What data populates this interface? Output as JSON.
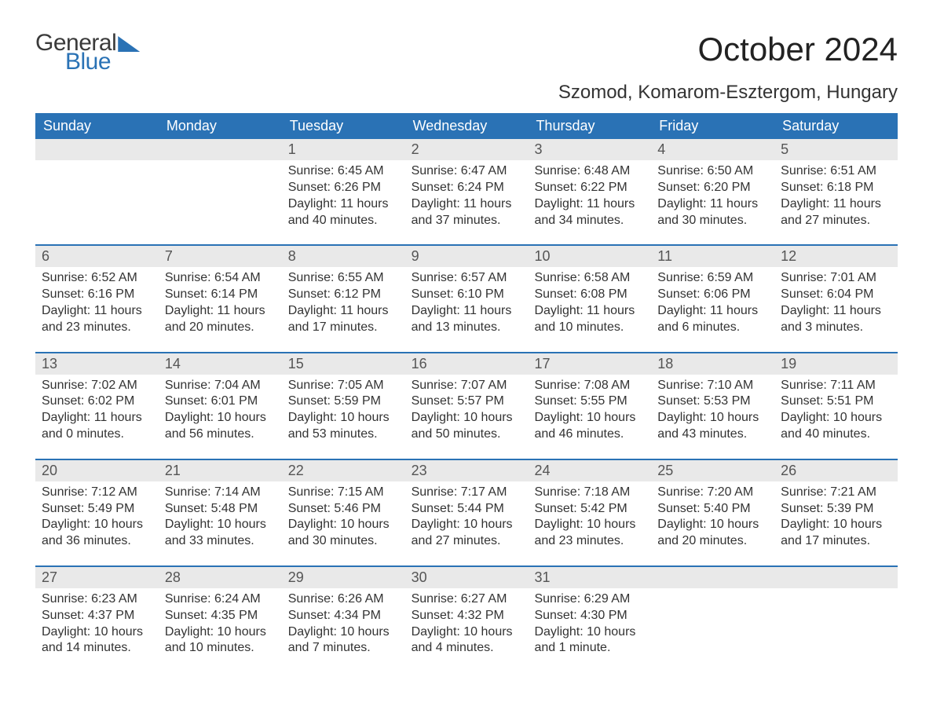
{
  "logo": {
    "general": "General",
    "blue": "Blue"
  },
  "title": "October 2024",
  "location": "Szomod, Komarom-Esztergom, Hungary",
  "colors": {
    "header_bg": "#2a72b5",
    "header_text": "#ffffff",
    "daynum_bg": "#e9e9e9",
    "week_border": "#2a72b5",
    "body_text": "#333333",
    "page_bg": "#ffffff"
  },
  "typography": {
    "title_fontsize": 42,
    "location_fontsize": 24,
    "dayhead_fontsize": 18,
    "daynum_fontsize": 18,
    "body_fontsize": 16,
    "logo_fontsize": 30
  },
  "day_headers": [
    "Sunday",
    "Monday",
    "Tuesday",
    "Wednesday",
    "Thursday",
    "Friday",
    "Saturday"
  ],
  "weeks": [
    [
      {
        "num": "",
        "sunrise": "",
        "sunset": "",
        "daylight": ""
      },
      {
        "num": "",
        "sunrise": "",
        "sunset": "",
        "daylight": ""
      },
      {
        "num": "1",
        "sunrise": "Sunrise: 6:45 AM",
        "sunset": "Sunset: 6:26 PM",
        "daylight": "Daylight: 11 hours and 40 minutes."
      },
      {
        "num": "2",
        "sunrise": "Sunrise: 6:47 AM",
        "sunset": "Sunset: 6:24 PM",
        "daylight": "Daylight: 11 hours and 37 minutes."
      },
      {
        "num": "3",
        "sunrise": "Sunrise: 6:48 AM",
        "sunset": "Sunset: 6:22 PM",
        "daylight": "Daylight: 11 hours and 34 minutes."
      },
      {
        "num": "4",
        "sunrise": "Sunrise: 6:50 AM",
        "sunset": "Sunset: 6:20 PM",
        "daylight": "Daylight: 11 hours and 30 minutes."
      },
      {
        "num": "5",
        "sunrise": "Sunrise: 6:51 AM",
        "sunset": "Sunset: 6:18 PM",
        "daylight": "Daylight: 11 hours and 27 minutes."
      }
    ],
    [
      {
        "num": "6",
        "sunrise": "Sunrise: 6:52 AM",
        "sunset": "Sunset: 6:16 PM",
        "daylight": "Daylight: 11 hours and 23 minutes."
      },
      {
        "num": "7",
        "sunrise": "Sunrise: 6:54 AM",
        "sunset": "Sunset: 6:14 PM",
        "daylight": "Daylight: 11 hours and 20 minutes."
      },
      {
        "num": "8",
        "sunrise": "Sunrise: 6:55 AM",
        "sunset": "Sunset: 6:12 PM",
        "daylight": "Daylight: 11 hours and 17 minutes."
      },
      {
        "num": "9",
        "sunrise": "Sunrise: 6:57 AM",
        "sunset": "Sunset: 6:10 PM",
        "daylight": "Daylight: 11 hours and 13 minutes."
      },
      {
        "num": "10",
        "sunrise": "Sunrise: 6:58 AM",
        "sunset": "Sunset: 6:08 PM",
        "daylight": "Daylight: 11 hours and 10 minutes."
      },
      {
        "num": "11",
        "sunrise": "Sunrise: 6:59 AM",
        "sunset": "Sunset: 6:06 PM",
        "daylight": "Daylight: 11 hours and 6 minutes."
      },
      {
        "num": "12",
        "sunrise": "Sunrise: 7:01 AM",
        "sunset": "Sunset: 6:04 PM",
        "daylight": "Daylight: 11 hours and 3 minutes."
      }
    ],
    [
      {
        "num": "13",
        "sunrise": "Sunrise: 7:02 AM",
        "sunset": "Sunset: 6:02 PM",
        "daylight": "Daylight: 11 hours and 0 minutes."
      },
      {
        "num": "14",
        "sunrise": "Sunrise: 7:04 AM",
        "sunset": "Sunset: 6:01 PM",
        "daylight": "Daylight: 10 hours and 56 minutes."
      },
      {
        "num": "15",
        "sunrise": "Sunrise: 7:05 AM",
        "sunset": "Sunset: 5:59 PM",
        "daylight": "Daylight: 10 hours and 53 minutes."
      },
      {
        "num": "16",
        "sunrise": "Sunrise: 7:07 AM",
        "sunset": "Sunset: 5:57 PM",
        "daylight": "Daylight: 10 hours and 50 minutes."
      },
      {
        "num": "17",
        "sunrise": "Sunrise: 7:08 AM",
        "sunset": "Sunset: 5:55 PM",
        "daylight": "Daylight: 10 hours and 46 minutes."
      },
      {
        "num": "18",
        "sunrise": "Sunrise: 7:10 AM",
        "sunset": "Sunset: 5:53 PM",
        "daylight": "Daylight: 10 hours and 43 minutes."
      },
      {
        "num": "19",
        "sunrise": "Sunrise: 7:11 AM",
        "sunset": "Sunset: 5:51 PM",
        "daylight": "Daylight: 10 hours and 40 minutes."
      }
    ],
    [
      {
        "num": "20",
        "sunrise": "Sunrise: 7:12 AM",
        "sunset": "Sunset: 5:49 PM",
        "daylight": "Daylight: 10 hours and 36 minutes."
      },
      {
        "num": "21",
        "sunrise": "Sunrise: 7:14 AM",
        "sunset": "Sunset: 5:48 PM",
        "daylight": "Daylight: 10 hours and 33 minutes."
      },
      {
        "num": "22",
        "sunrise": "Sunrise: 7:15 AM",
        "sunset": "Sunset: 5:46 PM",
        "daylight": "Daylight: 10 hours and 30 minutes."
      },
      {
        "num": "23",
        "sunrise": "Sunrise: 7:17 AM",
        "sunset": "Sunset: 5:44 PM",
        "daylight": "Daylight: 10 hours and 27 minutes."
      },
      {
        "num": "24",
        "sunrise": "Sunrise: 7:18 AM",
        "sunset": "Sunset: 5:42 PM",
        "daylight": "Daylight: 10 hours and 23 minutes."
      },
      {
        "num": "25",
        "sunrise": "Sunrise: 7:20 AM",
        "sunset": "Sunset: 5:40 PM",
        "daylight": "Daylight: 10 hours and 20 minutes."
      },
      {
        "num": "26",
        "sunrise": "Sunrise: 7:21 AM",
        "sunset": "Sunset: 5:39 PM",
        "daylight": "Daylight: 10 hours and 17 minutes."
      }
    ],
    [
      {
        "num": "27",
        "sunrise": "Sunrise: 6:23 AM",
        "sunset": "Sunset: 4:37 PM",
        "daylight": "Daylight: 10 hours and 14 minutes."
      },
      {
        "num": "28",
        "sunrise": "Sunrise: 6:24 AM",
        "sunset": "Sunset: 4:35 PM",
        "daylight": "Daylight: 10 hours and 10 minutes."
      },
      {
        "num": "29",
        "sunrise": "Sunrise: 6:26 AM",
        "sunset": "Sunset: 4:34 PM",
        "daylight": "Daylight: 10 hours and 7 minutes."
      },
      {
        "num": "30",
        "sunrise": "Sunrise: 6:27 AM",
        "sunset": "Sunset: 4:32 PM",
        "daylight": "Daylight: 10 hours and 4 minutes."
      },
      {
        "num": "31",
        "sunrise": "Sunrise: 6:29 AM",
        "sunset": "Sunset: 4:30 PM",
        "daylight": "Daylight: 10 hours and 1 minute."
      },
      {
        "num": "",
        "sunrise": "",
        "sunset": "",
        "daylight": ""
      },
      {
        "num": "",
        "sunrise": "",
        "sunset": "",
        "daylight": ""
      }
    ]
  ]
}
